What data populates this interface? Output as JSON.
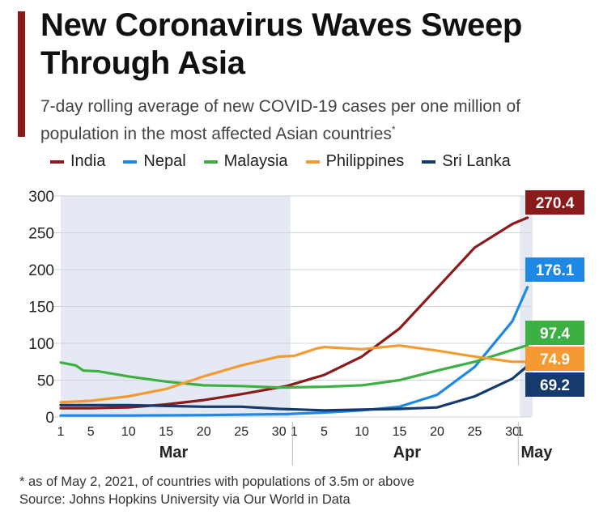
{
  "header": {
    "title": "New Coronavirus Waves Sweep Through Asia",
    "subtitle": "7-day rolling average of new COVID-19 cases per one million of population in the most affected Asian countries",
    "subtitle_marker": "*"
  },
  "footer": {
    "note": "* as of May 2, 2021, of countries with populations of 3.5m or above",
    "source": "Source: Johns Hopkins University via Our World in Data"
  },
  "chart_data": {
    "type": "line",
    "x_unit": "date (March 1 – May 2, 2021)",
    "x_tick_labels": [
      "1",
      "5",
      "10",
      "15",
      "20",
      "25",
      "30",
      "1",
      "5",
      "10",
      "15",
      "20",
      "25",
      "30",
      "1"
    ],
    "month_labels": [
      "Mar",
      "Apr",
      "May"
    ],
    "ylim": [
      0,
      300
    ],
    "y_ticks": [
      0,
      50,
      100,
      150,
      200,
      250,
      300
    ],
    "grid": true,
    "legend_position": "top",
    "shaded_months": [
      "Mar",
      "May"
    ],
    "series": [
      {
        "name": "India",
        "color": "#8b1a1a",
        "end_label": "270.4",
        "points": [
          [
            1,
            12
          ],
          [
            5,
            12
          ],
          [
            10,
            13
          ],
          [
            15,
            17
          ],
          [
            20,
            23
          ],
          [
            25,
            31
          ],
          [
            31,
            42
          ],
          [
            5,
            57
          ],
          [
            10,
            82
          ],
          [
            15,
            120
          ],
          [
            20,
            175
          ],
          [
            25,
            230
          ],
          [
            30,
            262
          ],
          [
            2,
            270.4
          ]
        ]
      },
      {
        "name": "Nepal",
        "color": "#1e88e5",
        "end_label": "176.1",
        "points": [
          [
            1,
            2
          ],
          [
            10,
            2
          ],
          [
            20,
            2.5
          ],
          [
            31,
            4
          ],
          [
            5,
            6
          ],
          [
            10,
            9
          ],
          [
            15,
            14
          ],
          [
            20,
            30
          ],
          [
            25,
            68
          ],
          [
            30,
            130
          ],
          [
            2,
            176.1
          ]
        ]
      },
      {
        "name": "Malaysia",
        "color": "#3cb043",
        "end_label": "97.4",
        "points": [
          [
            1,
            74
          ],
          [
            3,
            70
          ],
          [
            4,
            63
          ],
          [
            6,
            62
          ],
          [
            10,
            55
          ],
          [
            15,
            48
          ],
          [
            20,
            43
          ],
          [
            25,
            42
          ],
          [
            30,
            40
          ],
          [
            5,
            41
          ],
          [
            10,
            43
          ],
          [
            15,
            50
          ],
          [
            20,
            63
          ],
          [
            25,
            75
          ],
          [
            30,
            91
          ],
          [
            2,
            97.4
          ]
        ]
      },
      {
        "name": "Philippines",
        "color": "#f39a32",
        "end_label": "74.9",
        "points": [
          [
            1,
            20
          ],
          [
            5,
            22
          ],
          [
            10,
            28
          ],
          [
            15,
            38
          ],
          [
            20,
            55
          ],
          [
            25,
            70
          ],
          [
            30,
            82
          ],
          [
            1,
            83
          ],
          [
            4,
            93
          ],
          [
            5,
            95
          ],
          [
            10,
            92
          ],
          [
            15,
            97
          ],
          [
            20,
            90
          ],
          [
            25,
            82
          ],
          [
            30,
            75
          ],
          [
            2,
            74.9
          ]
        ]
      },
      {
        "name": "Sri Lanka",
        "color": "#143a6e",
        "end_label": "69.2",
        "points": [
          [
            1,
            16
          ],
          [
            10,
            16
          ],
          [
            20,
            14
          ],
          [
            25,
            14
          ],
          [
            30,
            11
          ],
          [
            5,
            9
          ],
          [
            10,
            10
          ],
          [
            15,
            11
          ],
          [
            20,
            13
          ],
          [
            25,
            28
          ],
          [
            30,
            52
          ],
          [
            2,
            69.2
          ]
        ]
      }
    ]
  }
}
